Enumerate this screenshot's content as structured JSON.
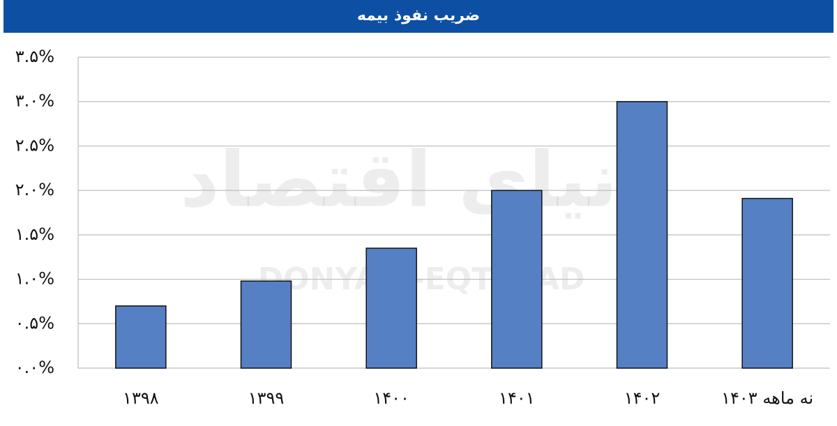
{
  "chart_data": {
    "type": "bar",
    "title": "ضریب نفوذ بیمه",
    "watermark": [
      "دنیای اقتصاد",
      "DONYA-E-EQTESAD"
    ],
    "categories": [
      "۱۳۹۸",
      "۱۳۹۹",
      "۱۴۰۰",
      "۱۴۰۱",
      "۱۴۰۲",
      "نه ماهه ۱۴۰۳"
    ],
    "values": [
      0.7,
      0.98,
      1.35,
      2.0,
      3.0,
      1.91
    ],
    "color": "#5580c4",
    "ylim": [
      0,
      3.5
    ],
    "yticks": [
      {
        "value": 0,
        "label": "۰.۰%"
      },
      {
        "value": 0.5,
        "label": "۰.۵%"
      },
      {
        "value": 1,
        "label": "۱.۰%"
      },
      {
        "value": 1.5,
        "label": "۱.۵%"
      },
      {
        "value": 2,
        "label": "۲.۰%"
      },
      {
        "value": 2.5,
        "label": "۲.۵%"
      },
      {
        "value": 3,
        "label": "۳.۰%"
      },
      {
        "value": 3.5,
        "label": "۳.۵%"
      }
    ],
    "grid": true
  }
}
